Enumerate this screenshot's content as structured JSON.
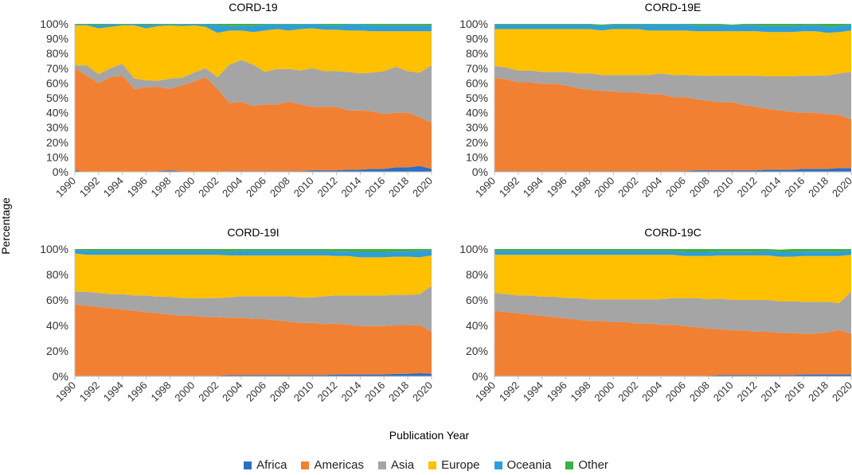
{
  "y_axis_label": "Percentage",
  "x_axis_label": "Publication Year",
  "colors": {
    "Africa": "#2a6fc3",
    "Americas": "#f28032",
    "Asia": "#a5a5a5",
    "Europe": "#ffc000",
    "Oceania": "#2f9ed8",
    "Other": "#3fae49"
  },
  "legend": [
    {
      "name": "Africa"
    },
    {
      "name": "Americas"
    },
    {
      "name": "Asia"
    },
    {
      "name": "Europe"
    },
    {
      "name": "Oceania"
    },
    {
      "name": "Other"
    }
  ],
  "chart_data": [
    {
      "type": "area",
      "stacked": true,
      "title": "CORD-19",
      "xlabel": "Publication Year",
      "ylabel": "Percentage",
      "ylim": [
        0,
        100
      ],
      "yticks": [
        "0%",
        "10%",
        "20%",
        "30%",
        "40%",
        "50%",
        "60%",
        "70%",
        "80%",
        "90%",
        "100%"
      ],
      "xticks": [
        "1990",
        "1992",
        "1994",
        "1996",
        "1998",
        "2000",
        "2002",
        "2004",
        "2006",
        "2008",
        "2010",
        "2012",
        "2014",
        "2016",
        "2018",
        "2020"
      ],
      "x": [
        1990,
        1991,
        1992,
        1993,
        1994,
        1995,
        1996,
        1997,
        1998,
        1999,
        2000,
        2001,
        2002,
        2003,
        2004,
        2005,
        2006,
        2007,
        2008,
        2009,
        2010,
        2011,
        2012,
        2013,
        2014,
        2015,
        2016,
        2017,
        2018,
        2019,
        2020
      ],
      "series": [
        {
          "name": "Africa",
          "values": [
            1,
            0,
            0,
            0,
            0,
            0,
            0,
            0.5,
            1,
            0.5,
            0,
            0,
            0,
            0.5,
            0.5,
            0.5,
            0.5,
            0.5,
            0.5,
            0.5,
            1,
            1,
            1,
            1.5,
            1.5,
            2,
            2,
            3,
            3,
            4,
            2
          ]
        },
        {
          "name": "Americas",
          "values": [
            69,
            65,
            60,
            64,
            65,
            56,
            57,
            57,
            55,
            58,
            61,
            64,
            56,
            46,
            47,
            44,
            45,
            45,
            47,
            45,
            43,
            43,
            43,
            40,
            40,
            39,
            37,
            37,
            37,
            33,
            31
          ]
        },
        {
          "name": "Asia",
          "values": [
            2,
            7,
            6,
            6,
            8,
            7,
            5,
            4,
            7,
            5,
            6,
            6,
            8,
            26,
            28,
            28,
            22,
            24,
            22,
            23,
            26,
            24,
            24,
            26,
            25,
            26,
            29,
            31,
            28,
            30,
            39
          ]
        },
        {
          "name": "Europe",
          "values": [
            27,
            27,
            31,
            28,
            26,
            36,
            35,
            37,
            36,
            35,
            32,
            28,
            30,
            23,
            20,
            22,
            28,
            27,
            26,
            28,
            27,
            28,
            28,
            28,
            29,
            28,
            27,
            24,
            27,
            28,
            23
          ]
        },
        {
          "name": "Oceania",
          "values": [
            0.5,
            0.5,
            2,
            1.5,
            0.5,
            1,
            2,
            1,
            0.5,
            1,
            1,
            1.5,
            5,
            3,
            3,
            4,
            4,
            3,
            4,
            3,
            3,
            3,
            3,
            4,
            4,
            4,
            4,
            4,
            4,
            4,
            4
          ]
        },
        {
          "name": "Other",
          "values": [
            0.5,
            0.5,
            1,
            0.5,
            0.5,
            0,
            1,
            0.5,
            0.5,
            0.5,
            0,
            0.5,
            1,
            1.5,
            1.5,
            1.5,
            0.5,
            0.5,
            0.5,
            0.5,
            0,
            1,
            1,
            0.5,
            0.5,
            1,
            1,
            1,
            1,
            1,
            1
          ]
        }
      ]
    },
    {
      "type": "area",
      "stacked": true,
      "title": "CORD-19E",
      "xlabel": "Publication Year",
      "ylabel": "Percentage",
      "ylim": [
        0,
        100
      ],
      "yticks": [
        "0%",
        "10%",
        "20%",
        "30%",
        "40%",
        "50%",
        "60%",
        "70%",
        "80%",
        "90%",
        "100%"
      ],
      "xticks": [
        "1990",
        "1992",
        "1994",
        "1996",
        "1998",
        "2000",
        "2002",
        "2004",
        "2006",
        "2008",
        "2010",
        "2012",
        "2014",
        "2016",
        "2018",
        "2020"
      ],
      "x": [
        1990,
        1991,
        1992,
        1993,
        1994,
        1995,
        1996,
        1997,
        1998,
        1999,
        2000,
        2001,
        2002,
        2003,
        2004,
        2005,
        2006,
        2007,
        2008,
        2009,
        2010,
        2011,
        2012,
        2013,
        2014,
        2015,
        2016,
        2017,
        2018,
        2019,
        2020
      ],
      "series": [
        {
          "name": "Africa",
          "values": [
            0.5,
            0.5,
            0.5,
            0.5,
            0.5,
            0.5,
            0.5,
            0.5,
            0.5,
            0.5,
            0.5,
            0.5,
            0.5,
            0.5,
            0.5,
            0.5,
            0.5,
            1,
            1,
            1,
            1,
            1,
            1,
            1.5,
            1.5,
            1.5,
            2,
            2,
            2,
            2.5,
            2.5
          ]
        },
        {
          "name": "Americas",
          "values": [
            63,
            62,
            60,
            60,
            59,
            59,
            58,
            56,
            55,
            54,
            54,
            53,
            53,
            52,
            52,
            50,
            50,
            48,
            47,
            46,
            46,
            44,
            43,
            41,
            40,
            39,
            38,
            38,
            37,
            36,
            33
          ]
        },
        {
          "name": "Asia",
          "values": [
            8,
            8,
            8,
            8,
            8,
            8,
            9,
            10,
            11,
            11,
            11,
            12,
            12,
            13,
            14,
            15,
            15,
            16,
            17,
            18,
            18,
            20,
            21,
            22,
            23,
            24,
            25,
            25,
            26,
            28,
            32
          ]
        },
        {
          "name": "Europe",
          "values": [
            25,
            26,
            28,
            28,
            29,
            29,
            29,
            30,
            30,
            30,
            31,
            31,
            31,
            30,
            29,
            30,
            30,
            30,
            30,
            30,
            30,
            30,
            30,
            30,
            30,
            30,
            30,
            30,
            29,
            28,
            28
          ]
        },
        {
          "name": "Oceania",
          "values": [
            3,
            3,
            3,
            3,
            3,
            3,
            3,
            3,
            3,
            3,
            3,
            3,
            3,
            4,
            4,
            4,
            4,
            4,
            4,
            4,
            4,
            4,
            4,
            4,
            4,
            4,
            4,
            4,
            4,
            4,
            4
          ]
        },
        {
          "name": "Other",
          "values": [
            0.5,
            0.5,
            0.5,
            0.5,
            0.5,
            0.5,
            0.5,
            0.5,
            0.5,
            1,
            0.5,
            0.5,
            0.5,
            0.5,
            0.5,
            0.5,
            0.5,
            1,
            1,
            1,
            0.5,
            1,
            1,
            1.5,
            1.5,
            1.5,
            1,
            1,
            2,
            1.5,
            0.5
          ]
        }
      ]
    },
    {
      "type": "area",
      "stacked": true,
      "title": "CORD-19I",
      "xlabel": "Publication Year",
      "ylabel": "Percentage",
      "ylim": [
        0,
        100
      ],
      "yticks": [
        "0%",
        "20%",
        "40%",
        "60%",
        "80%",
        "100%"
      ],
      "xticks": [
        "1990",
        "1992",
        "1994",
        "1996",
        "1998",
        "2000",
        "2002",
        "2004",
        "2006",
        "2008",
        "2010",
        "2012",
        "2014",
        "2016",
        "2018",
        "2020"
      ],
      "x": [
        1990,
        1991,
        1992,
        1993,
        1994,
        1995,
        1996,
        1997,
        1998,
        1999,
        2000,
        2001,
        2002,
        2003,
        2004,
        2005,
        2006,
        2007,
        2008,
        2009,
        2010,
        2011,
        2012,
        2013,
        2014,
        2015,
        2016,
        2017,
        2018,
        2019,
        2020
      ],
      "series": [
        {
          "name": "Africa",
          "values": [
            0.5,
            0.5,
            0.5,
            0.5,
            0.5,
            0.5,
            0.5,
            0.5,
            0.5,
            0.5,
            0.5,
            0.5,
            0.5,
            1,
            1,
            1,
            1,
            1,
            1,
            1,
            1,
            1,
            1.5,
            1.5,
            1.5,
            1.5,
            1.5,
            2,
            2,
            2.5,
            2
          ]
        },
        {
          "name": "Americas",
          "values": [
            56,
            55,
            54,
            53,
            52,
            51,
            50,
            49,
            48,
            47,
            47,
            46,
            46,
            45,
            45,
            44,
            44,
            43,
            42,
            41,
            41,
            40,
            40,
            39,
            38,
            38,
            38,
            38,
            38,
            38,
            33
          ]
        },
        {
          "name": "Asia",
          "values": [
            10,
            11,
            11,
            11,
            12,
            12,
            13,
            13,
            14,
            14,
            14,
            15,
            15,
            16,
            17,
            18,
            18,
            19,
            20,
            20,
            20,
            22,
            22,
            23,
            24,
            24,
            24,
            24,
            24,
            24,
            36
          ]
        },
        {
          "name": "Europe",
          "values": [
            30,
            29,
            30,
            31,
            31,
            32,
            32,
            33,
            33,
            34,
            34,
            34,
            34,
            33,
            32,
            32,
            32,
            32,
            32,
            33,
            33,
            32,
            31,
            31,
            30,
            30,
            30,
            30,
            30,
            29,
            24
          ]
        },
        {
          "name": "Oceania",
          "values": [
            3,
            3,
            3,
            3,
            3,
            3,
            3,
            3,
            3,
            3,
            3,
            3,
            3,
            3,
            3.5,
            3.5,
            3.5,
            3.5,
            3.5,
            3.5,
            3.5,
            3.5,
            3.5,
            3.5,
            4,
            4,
            4,
            4,
            4,
            5,
            4
          ]
        },
        {
          "name": "Other",
          "values": [
            0.5,
            1.5,
            1.5,
            1.5,
            1.5,
            1.5,
            1.5,
            1.5,
            1.5,
            1.5,
            1.5,
            1.5,
            1.5,
            2,
            1.5,
            1.5,
            1.5,
            1.5,
            1.5,
            1.5,
            1.5,
            1.5,
            2,
            2,
            2.5,
            2.5,
            2.5,
            2,
            2,
            1.5,
            1
          ]
        }
      ]
    },
    {
      "type": "area",
      "stacked": true,
      "title": "CORD-19C",
      "xlabel": "Publication Year",
      "ylabel": "Percentage",
      "ylim": [
        0,
        100
      ],
      "yticks": [
        "0%",
        "20%",
        "40%",
        "60%",
        "80%",
        "100%"
      ],
      "xticks": [
        "1990",
        "1992",
        "1994",
        "1996",
        "1998",
        "2000",
        "2002",
        "2004",
        "2006",
        "2008",
        "2010",
        "2012",
        "2014",
        "2016",
        "2018",
        "2020"
      ],
      "x": [
        1990,
        1991,
        1992,
        1993,
        1994,
        1995,
        1996,
        1997,
        1998,
        1999,
        2000,
        2001,
        2002,
        2003,
        2004,
        2005,
        2006,
        2007,
        2008,
        2009,
        2010,
        2011,
        2012,
        2013,
        2014,
        2015,
        2016,
        2017,
        2018,
        2019,
        2020
      ],
      "series": [
        {
          "name": "Africa",
          "values": [
            0.5,
            0.5,
            0.5,
            0.5,
            0.5,
            0.5,
            0.5,
            0.5,
            0.5,
            0.5,
            0.5,
            0.5,
            0.5,
            0.5,
            0.5,
            0.5,
            0.5,
            0.5,
            0.5,
            1,
            1,
            1,
            1,
            1,
            1,
            1,
            1.5,
            1.5,
            1.5,
            1.5,
            1.5
          ]
        },
        {
          "name": "Americas",
          "values": [
            51,
            50,
            49,
            48,
            47,
            46,
            45,
            44,
            43,
            43,
            42,
            42,
            41,
            41,
            40,
            40,
            39,
            38,
            37,
            36,
            35,
            35,
            34,
            34,
            33,
            33,
            32,
            32,
            33,
            35,
            32
          ]
        },
        {
          "name": "Asia",
          "values": [
            14,
            14,
            14,
            15,
            15,
            16,
            16,
            17,
            17,
            17,
            18,
            18,
            19,
            19,
            20,
            21,
            22,
            23,
            23,
            24,
            24,
            24,
            25,
            25,
            25,
            25,
            25,
            25,
            24,
            21,
            33
          ]
        },
        {
          "name": "Europe",
          "values": [
            30,
            31,
            32,
            32,
            33,
            33,
            34,
            34,
            35,
            35,
            35,
            35,
            35,
            35,
            35,
            34,
            33,
            33,
            34,
            34,
            35,
            35,
            35,
            35,
            35,
            35,
            36,
            36,
            36,
            37,
            29
          ]
        },
        {
          "name": "Oceania",
          "values": [
            3,
            3,
            3,
            3,
            3,
            3,
            3,
            3,
            3,
            3,
            3,
            3,
            3,
            3,
            3,
            3,
            3,
            3,
            3,
            3,
            3,
            3,
            3,
            3.5,
            3.5,
            3.5,
            3.5,
            3.5,
            3.5,
            3.5,
            3.5
          ]
        },
        {
          "name": "Other",
          "values": [
            1.5,
            1.5,
            1.5,
            1.5,
            1.5,
            1.5,
            1.5,
            1.5,
            1.5,
            1.5,
            1.5,
            1.5,
            1.5,
            1.5,
            1.5,
            1.5,
            2.5,
            2.5,
            2.5,
            2,
            2,
            2,
            2,
            2,
            2,
            2.5,
            2,
            2,
            2,
            2,
            1
          ]
        }
      ]
    }
  ]
}
